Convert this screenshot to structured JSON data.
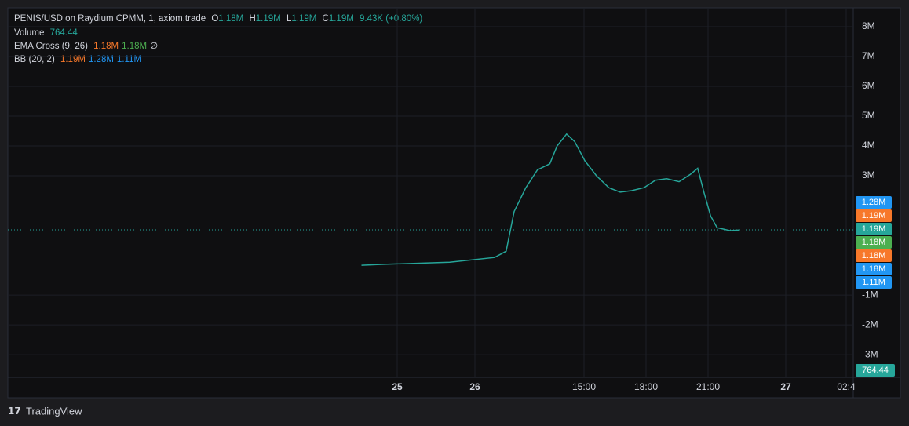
{
  "legend": {
    "symbol": "PENIS/USD on Raydium CPMM, 1, axiom.trade",
    "ohlc": [
      {
        "key": "O",
        "value": "1.18M"
      },
      {
        "key": "H",
        "value": "1.19M"
      },
      {
        "key": "L",
        "value": "1.19M"
      },
      {
        "key": "C",
        "value": "1.19M"
      }
    ],
    "change": "9.43K (+0.80%)",
    "volume": {
      "name": "Volume",
      "value": "764.44"
    },
    "ema": {
      "name": "EMA Cross (9, 26)",
      "values": [
        "1.18M",
        "1.18M",
        "∅"
      ],
      "colors": [
        "#f7782a",
        "#4caf50",
        "#d1d4dc"
      ]
    },
    "bb": {
      "name": "BB (20, 2)",
      "values": [
        "1.19M",
        "1.28M",
        "1.11M"
      ],
      "colors": [
        "#f7782a",
        "#2196f3",
        "#2196f3"
      ]
    }
  },
  "chart_data": {
    "type": "line",
    "x": [
      21.8,
      23.2,
      40.2,
      50.7,
      52.3,
      53.4,
      55.0,
      56.6,
      58.3,
      59.3,
      60.6,
      61.7,
      63.04,
      63.6,
      64.2,
      64.75,
      65.3,
      65.9,
      66.45,
      67.0,
      67.6,
      68.15,
      68.5,
      68.8,
      69.1,
      69.35,
      69.85,
      70.2
    ],
    "series": [
      {
        "color": "#26a69a",
        "values": [
          0,
          30000,
          100000,
          260000,
          470000,
          1800000,
          2600000,
          3200000,
          3400000,
          4000000,
          4400000,
          4150000,
          3500000,
          3000000,
          2600000,
          2450000,
          2500000,
          2600000,
          2850000,
          2900000,
          2800000,
          3050000,
          3250000,
          2450000,
          1650000,
          1260000,
          1160000,
          1180000
        ]
      }
    ],
    "xlim": [
      0,
      75.1
    ],
    "xticks": [
      {
        "value": 24,
        "label": "25"
      },
      {
        "value": 48,
        "label": "26"
      },
      {
        "value": 63,
        "label": "15:00"
      },
      {
        "value": 66,
        "label": "18:00"
      },
      {
        "value": 69,
        "label": "21:00"
      },
      {
        "value": 72,
        "label": "27"
      },
      {
        "value": 74.75,
        "label": "02:4"
      }
    ],
    "ylim": [
      -3760000,
      8630000
    ],
    "yticks": [
      {
        "value": 8000000,
        "label": "8M"
      },
      {
        "value": 7000000,
        "label": "7M"
      },
      {
        "value": 6000000,
        "label": "6M"
      },
      {
        "value": 5000000,
        "label": "5M"
      },
      {
        "value": 4000000,
        "label": "4M"
      },
      {
        "value": 3000000,
        "label": "3M"
      },
      {
        "value": -1000000,
        "label": "-1M"
      },
      {
        "value": -2000000,
        "label": "-2M"
      },
      {
        "value": -3000000,
        "label": "-3M"
      }
    ]
  },
  "price_tags": [
    {
      "label": "1.28M",
      "color": "#2196f3"
    },
    {
      "label": "1.19M",
      "color": "#f7782a"
    },
    {
      "label": "1.19M",
      "color": "#26a69a"
    },
    {
      "label": "1.18M",
      "color": "#4caf50"
    },
    {
      "label": "1.18M",
      "color": "#f7782a"
    },
    {
      "label": "1.18M",
      "color": "#2196f3"
    },
    {
      "label": "1.11M",
      "color": "#2196f3"
    }
  ],
  "volume_tag": {
    "label": "764.44",
    "color": "#26a69a"
  },
  "watermark": "TradingView"
}
